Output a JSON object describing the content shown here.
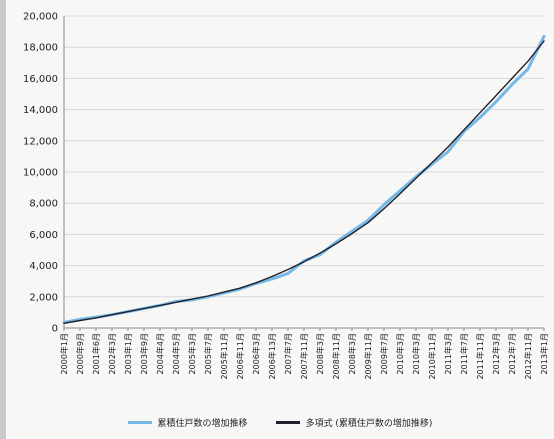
{
  "chart_data": {
    "type": "line",
    "title": "",
    "xlabel": "",
    "ylabel": "",
    "ylim": [
      0,
      20000
    ],
    "yticks": [
      "0",
      "2,000",
      "4,000",
      "6,000",
      "8,000",
      "10,000",
      "12,000",
      "14,000",
      "16,000",
      "18,000",
      "20,000"
    ],
    "categories": [
      "2000年1月",
      "2000年9月",
      "2001年6月",
      "2002年3月",
      "2003年1月",
      "2003年9月",
      "2004年4月",
      "2004年5月",
      "2005年3月",
      "2005年7月",
      "2005年11月",
      "2006年11月",
      "2006年3月",
      "2006年13月",
      "2007年7月",
      "2007年11月",
      "2008年3月",
      "2008年11月",
      "2008年3月",
      "2009年11月",
      "2009年7月",
      "2010年3月",
      "2010年3月",
      "2010年11月",
      "2011年3月",
      "2011年7月",
      "2011年11月",
      "2012年3月",
      "2012年7月",
      "2012年11月",
      "2013年1月"
    ],
    "grid": true,
    "legend_position": "bottom",
    "series": [
      {
        "name": "累積住戸数の増加推移",
        "color": "#74b9e6",
        "values": [
          350,
          550,
          700,
          850,
          1050,
          1250,
          1450,
          1700,
          1800,
          2000,
          2250,
          2500,
          2850,
          3150,
          3500,
          4300,
          4700,
          5500,
          6200,
          6900,
          7900,
          8800,
          9700,
          10500,
          11300,
          12600,
          13500,
          14500,
          15600,
          16600,
          18700
        ]
      },
      {
        "name": "多項式 (累積住戸数の増加推移)",
        "color": "#1f1f2e",
        "values": [
          300,
          480,
          650,
          850,
          1050,
          1250,
          1450,
          1650,
          1850,
          2050,
          2300,
          2550,
          2900,
          3300,
          3750,
          4250,
          4800,
          5400,
          6050,
          6750,
          7650,
          8600,
          9600,
          10600,
          11600,
          12700,
          13800,
          14900,
          16000,
          17100,
          18400
        ]
      }
    ]
  }
}
